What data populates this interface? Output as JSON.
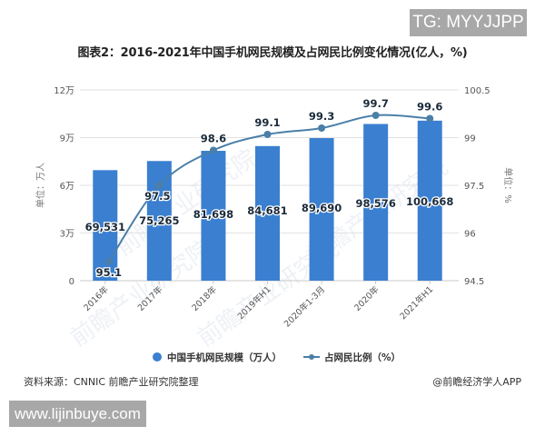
{
  "watermarks": {
    "tg": "TG: MYYJJPP",
    "site": "www.lijinbuye.com",
    "overlay": "前瞻产业研究院"
  },
  "title": "图表2：2016-2021年中国手机网民规模及占网民比例变化情况(亿人，%)",
  "footer": {
    "source": "资料来源：CNNIC 前瞻产业研究院整理",
    "credit": "@前瞻经济学人APP"
  },
  "colors": {
    "bar": "#3a7fd0",
    "line": "#4a7fa8",
    "grid": "#e2e2e2",
    "axis_text": "#555555"
  },
  "chart_data": {
    "type": "bar+line",
    "title": "图表2：2016-2021年中国手机网民规模及占网民比例变化情况(亿人，%)",
    "categories": [
      "2016年",
      "2017年",
      "2018年",
      "2019年H1",
      "2020年1-3月",
      "2020年",
      "2021年H1"
    ],
    "series": [
      {
        "name": "中国手机网民规模（万人）",
        "type": "bar",
        "axis": "left",
        "values": [
          69531,
          75265,
          81698,
          84681,
          89690,
          98576,
          100668
        ],
        "labels": [
          "69,531",
          "75,265",
          "81,698",
          "84,681",
          "89,690",
          "98,576",
          "100,668"
        ]
      },
      {
        "name": "占网民比例（%）",
        "type": "line",
        "axis": "right",
        "values": [
          95.1,
          97.5,
          98.6,
          99.1,
          99.3,
          99.7,
          99.6
        ],
        "labels": [
          "95.1",
          "97.5",
          "98.6",
          "99.1",
          "99.3",
          "99.7",
          "99.6"
        ]
      }
    ],
    "left_axis": {
      "label": "单位：万人",
      "ticks": [
        "0",
        "3万",
        "6万",
        "9万",
        "12万"
      ],
      "ylim": [
        0,
        120000
      ]
    },
    "right_axis": {
      "label": "单位：%",
      "ticks": [
        "94.5",
        "96",
        "97.5",
        "99",
        "100.5"
      ],
      "ylim": [
        94.5,
        100.5
      ]
    },
    "legend": {
      "position": "bottom",
      "items": [
        "中国手机网民规模（万人）",
        "占网民比例（%）"
      ]
    },
    "grid": true
  }
}
